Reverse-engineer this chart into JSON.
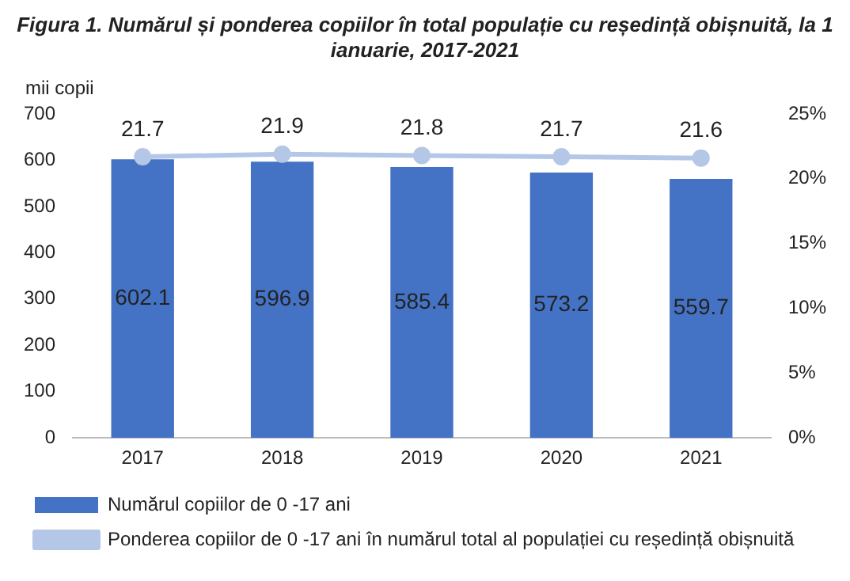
{
  "chart_data": {
    "type": "bar",
    "title": "Figura 1. Numărul și ponderea copiilor în total populație cu reședință obișnuită, la 1 ianuarie, 2017-2021",
    "ylabel": "mii copii",
    "categories": [
      "2017",
      "2018",
      "2019",
      "2020",
      "2021"
    ],
    "series": [
      {
        "name": "Numărul copiilor de 0 -17 ani",
        "color": "#4472c4",
        "values": [
          602.1,
          596.9,
          585.4,
          573.2,
          559.7
        ]
      },
      {
        "name": "Ponderea copiilor de 0 -17 ani în numărul total al populației cu reședință obișnuită",
        "type": "line",
        "axis": "y2",
        "color": "#b4c7e7",
        "values": [
          21.7,
          21.9,
          21.8,
          21.7,
          21.6
        ]
      }
    ],
    "ylim": [
      0,
      700
    ],
    "yticks": [
      0,
      100,
      200,
      300,
      400,
      500,
      600,
      700
    ],
    "y2lim": [
      0,
      25
    ],
    "y2ticks": [
      {
        "value": 0,
        "label": "0%"
      },
      {
        "value": 5,
        "label": "5%"
      },
      {
        "value": 10,
        "label": "10%"
      },
      {
        "value": 15,
        "label": "15%"
      },
      {
        "value": 20,
        "label": "20%"
      },
      {
        "value": 25,
        "label": "25%"
      }
    ],
    "data_labels": true,
    "grid": false,
    "legend": "bottom",
    "marker": "circle"
  }
}
